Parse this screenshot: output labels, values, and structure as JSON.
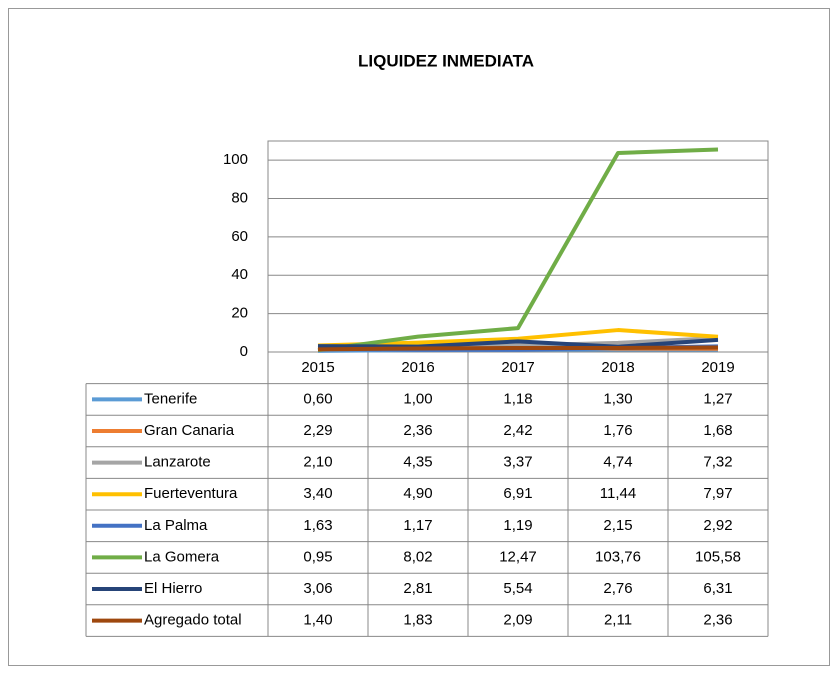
{
  "chart_data": {
    "type": "line",
    "title": "LIQUIDEZ INMEDIATA",
    "categories": [
      "2015",
      "2016",
      "2017",
      "2018",
      "2019"
    ],
    "ylim": [
      0,
      110
    ],
    "yticks": [
      0,
      20,
      40,
      60,
      80,
      100
    ],
    "grid": true,
    "series": [
      {
        "name": "Tenerife",
        "color": "#5b9bd5",
        "values": [
          0.6,
          1.0,
          1.18,
          1.3,
          1.27
        ],
        "value_labels": [
          "0,60",
          "1,00",
          "1,18",
          "1,30",
          "1,27"
        ]
      },
      {
        "name": "Gran Canaria",
        "color": "#ed7d31",
        "values": [
          2.29,
          2.36,
          2.42,
          1.76,
          1.68
        ],
        "value_labels": [
          "2,29",
          "2,36",
          "2,42",
          "1,76",
          "1,68"
        ]
      },
      {
        "name": "Lanzarote",
        "color": "#a5a5a5",
        "values": [
          2.1,
          4.35,
          3.37,
          4.74,
          7.32
        ],
        "value_labels": [
          "2,10",
          "4,35",
          "3,37",
          "4,74",
          "7,32"
        ]
      },
      {
        "name": "Fuerteventura",
        "color": "#ffc000",
        "values": [
          3.4,
          4.9,
          6.91,
          11.44,
          7.97
        ],
        "value_labels": [
          "3,40",
          "4,90",
          "6,91",
          "11,44",
          "7,97"
        ]
      },
      {
        "name": "La Palma",
        "color": "#4472c4",
        "values": [
          1.63,
          1.17,
          1.19,
          2.15,
          2.92
        ],
        "value_labels": [
          "1,63",
          "1,17",
          "1,19",
          "2,15",
          "2,92"
        ]
      },
      {
        "name": "La Gomera",
        "color": "#70ad47",
        "values": [
          0.95,
          8.02,
          12.47,
          103.76,
          105.58
        ],
        "value_labels": [
          "0,95",
          "8,02",
          "12,47",
          "103,76",
          "105,58"
        ]
      },
      {
        "name": "El Hierro",
        "color": "#264478",
        "values": [
          3.06,
          2.81,
          5.54,
          2.76,
          6.31
        ],
        "value_labels": [
          "3,06",
          "2,81",
          "5,54",
          "2,76",
          "6,31"
        ]
      },
      {
        "name": "Agregado total",
        "color": "#9e480e",
        "values": [
          1.4,
          1.83,
          2.09,
          2.11,
          2.36
        ],
        "value_labels": [
          "1,40",
          "1,83",
          "2,09",
          "2,11",
          "2,36"
        ]
      }
    ]
  }
}
